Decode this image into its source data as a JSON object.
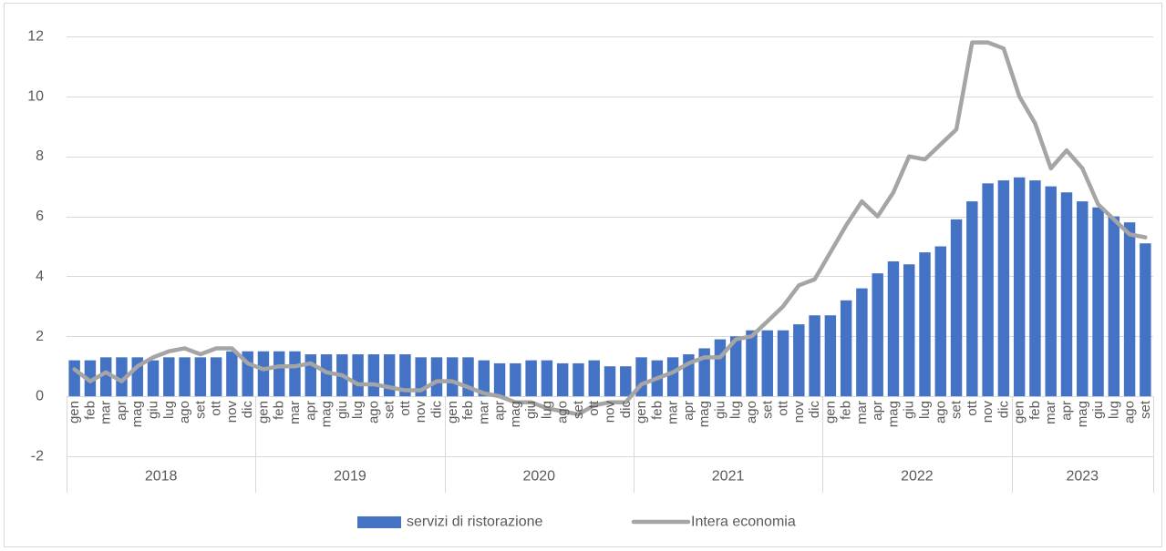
{
  "chart_data": {
    "type": "bar",
    "ylim": [
      -2,
      12
    ],
    "yticks": [
      -2,
      0,
      2,
      4,
      6,
      8,
      10,
      12
    ],
    "grid": true,
    "legend": "bottom",
    "category_groups": [
      {
        "label": "2018",
        "categories": [
          "gen",
          "feb",
          "mar",
          "apr",
          "mag",
          "giu",
          "lug",
          "ago",
          "set",
          "ott",
          "nov",
          "dic"
        ]
      },
      {
        "label": "2019",
        "categories": [
          "gen",
          "feb",
          "mar",
          "apr",
          "mag",
          "giu",
          "lug",
          "ago",
          "set",
          "ott",
          "nov",
          "dic"
        ]
      },
      {
        "label": "2020",
        "categories": [
          "gen",
          "feb",
          "mar",
          "apr",
          "mag",
          "giu",
          "lug",
          "ago",
          "set",
          "ott",
          "nov",
          "dic"
        ]
      },
      {
        "label": "2021",
        "categories": [
          "gen",
          "feb",
          "mar",
          "apr",
          "mag",
          "giu",
          "lug",
          "ago",
          "set",
          "ott",
          "nov",
          "dic"
        ]
      },
      {
        "label": "2022",
        "categories": [
          "gen",
          "feb",
          "mar",
          "apr",
          "mag",
          "giu",
          "lug",
          "ago",
          "set",
          "ott",
          "nov",
          "dic"
        ]
      },
      {
        "label": "2023",
        "categories": [
          "gen",
          "feb",
          "mar",
          "apr",
          "mag",
          "giu",
          "lug",
          "ago",
          "set"
        ]
      }
    ],
    "series": [
      {
        "name": "servizi di ristorazione",
        "type": "bar",
        "color": "#4472C4",
        "values": [
          1.2,
          1.2,
          1.3,
          1.3,
          1.3,
          1.2,
          1.3,
          1.3,
          1.3,
          1.3,
          1.5,
          1.5,
          1.5,
          1.5,
          1.5,
          1.4,
          1.4,
          1.4,
          1.4,
          1.4,
          1.4,
          1.4,
          1.3,
          1.3,
          1.3,
          1.3,
          1.2,
          1.1,
          1.1,
          1.2,
          1.2,
          1.1,
          1.1,
          1.2,
          1.0,
          1.0,
          1.3,
          1.2,
          1.3,
          1.4,
          1.6,
          1.9,
          2.0,
          2.2,
          2.2,
          2.2,
          2.4,
          2.7,
          2.7,
          3.2,
          3.6,
          4.1,
          4.5,
          4.4,
          4.8,
          5.0,
          5.9,
          6.5,
          7.1,
          7.2,
          7.3,
          7.2,
          7.0,
          6.8,
          6.5,
          6.3,
          6.0,
          5.8,
          5.1
        ]
      },
      {
        "name": "Intera economia",
        "type": "line",
        "color": "#A5A5A5",
        "values": [
          0.9,
          0.5,
          0.8,
          0.5,
          1.0,
          1.3,
          1.5,
          1.6,
          1.4,
          1.6,
          1.6,
          1.1,
          0.9,
          1.0,
          1.0,
          1.1,
          0.8,
          0.7,
          0.4,
          0.4,
          0.3,
          0.2,
          0.2,
          0.5,
          0.5,
          0.3,
          0.1,
          0.0,
          -0.2,
          -0.2,
          -0.4,
          -0.5,
          -0.6,
          -0.3,
          -0.2,
          -0.2,
          0.4,
          0.6,
          0.8,
          1.1,
          1.3,
          1.3,
          1.9,
          2.0,
          2.5,
          3.0,
          3.7,
          3.9,
          4.8,
          5.7,
          6.5,
          6.0,
          6.8,
          8.0,
          7.9,
          8.4,
          8.9,
          11.8,
          11.8,
          11.6,
          10.0,
          9.1,
          7.6,
          8.2,
          7.6,
          6.4,
          5.9,
          5.4,
          5.3
        ]
      }
    ]
  }
}
